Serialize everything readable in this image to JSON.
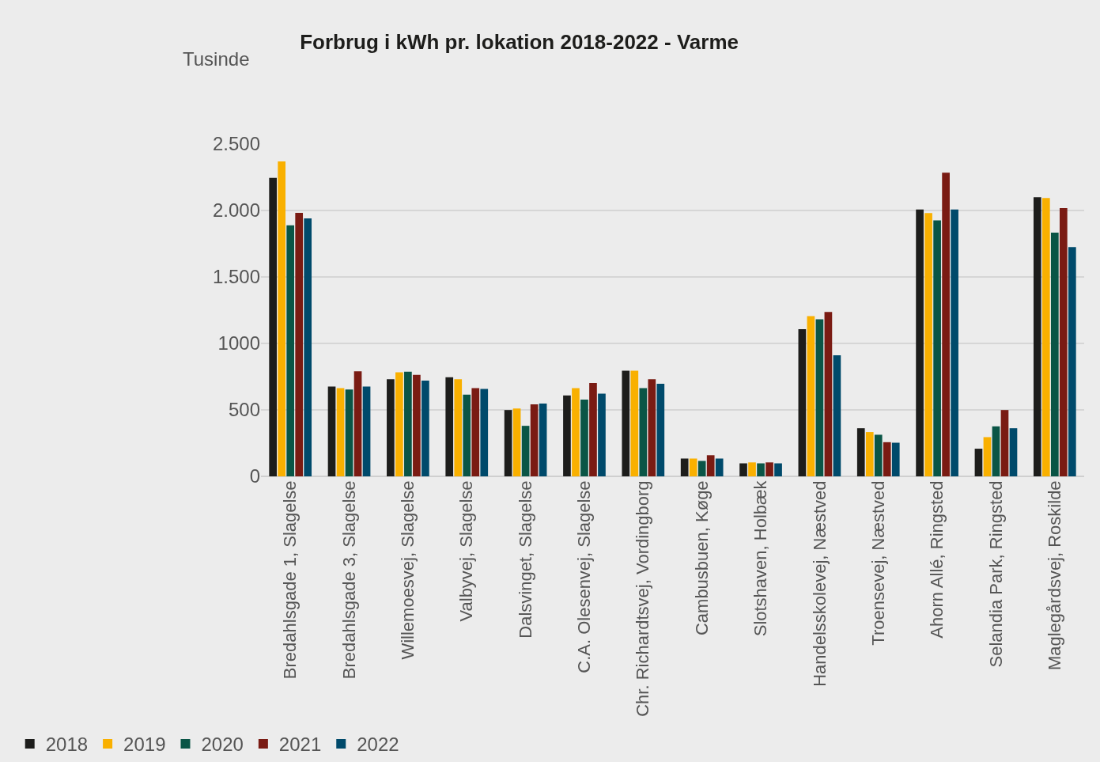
{
  "chart_data": {
    "type": "bar",
    "title": "Forbrug i kWh pr. lokation 2018-2022 - Varme",
    "ylabel": "Tusinde",
    "categories": [
      "Bredahlsgade 1, Slagelse",
      "Bredahlsgade 3, Slagelse",
      "Willemoesvej, Slagelse",
      "Valbyvej, Slagelse",
      "Dalsvinget, Slagelse",
      "C.A. Olesenvej, Slagelse",
      "Chr. Richardtsvej, Vordingborg",
      "Cambusbuen, Køge",
      "Slotshaven, Holbæk",
      "Handelsskolevej, Næstved",
      "Troensevej, Næstved",
      "Ahorn Allé, Ringsted",
      "Selandia Park, Ringsted",
      "Maglegårdsvej, Roskilde"
    ],
    "series": [
      {
        "name": "2018",
        "color": "#1d1d1b",
        "values": [
          2246,
          676,
          731,
          745,
          499,
          608,
          794,
          134,
          98,
          1107,
          362,
          2007,
          208,
          2100
        ]
      },
      {
        "name": "2019",
        "color": "#f9b000",
        "values": [
          2369,
          664,
          783,
          731,
          510,
          664,
          794,
          134,
          105,
          1206,
          333,
          1980,
          295,
          2094
        ]
      },
      {
        "name": "2020",
        "color": "#0a5546",
        "values": [
          1888,
          653,
          787,
          615,
          380,
          577,
          664,
          116,
          98,
          1181,
          313,
          1926,
          376,
          1834
        ]
      },
      {
        "name": "2021",
        "color": "#7a1b13",
        "values": [
          1982,
          790,
          763,
          664,
          541,
          702,
          731,
          159,
          105,
          1237,
          257,
          2284,
          499,
          2018
        ]
      },
      {
        "name": "2022",
        "color": "#004a6b",
        "values": [
          1940,
          676,
          720,
          658,
          548,
          622,
          696,
          134,
          98,
          910,
          253,
          2007,
          362,
          1725
        ]
      }
    ],
    "ylim": [
      0,
      2500
    ],
    "yticks": [
      0,
      500,
      1000,
      {
        "value": 1500,
        "label": "1.500"
      },
      {
        "value": 2000,
        "label": "2.000"
      },
      {
        "value": 2500,
        "label": "2.500"
      }
    ],
    "grid": "y",
    "legend": "bottom left"
  }
}
